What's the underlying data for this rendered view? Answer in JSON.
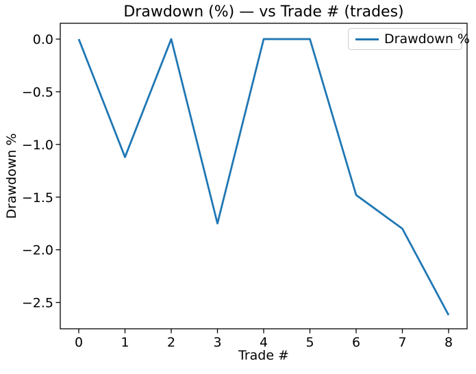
{
  "chart_data": {
    "type": "line",
    "title": "Drawdown (%) — vs Trade # (trades)",
    "xlabel": "Trade #",
    "ylabel": "Drawdown %",
    "x": [
      0,
      1,
      2,
      3,
      4,
      5,
      6,
      7,
      8
    ],
    "series": [
      {
        "name": "Drawdown %",
        "color": "#1f77b4",
        "values": [
          0.0,
          -1.12,
          0.0,
          -1.75,
          0.0,
          0.0,
          -1.48,
          -1.8,
          -2.62
        ]
      }
    ],
    "xlim": [
      -0.4,
      8.4
    ],
    "ylim": [
      -2.75,
      0.15
    ],
    "x_ticks": [
      0,
      1,
      2,
      3,
      4,
      5,
      6,
      7,
      8
    ],
    "y_ticks": [
      0.0,
      -0.5,
      -1.0,
      -1.5,
      -2.0,
      -2.5
    ],
    "y_tick_decimals": 1,
    "grid": false,
    "legend": {
      "position": "upper right",
      "entries": [
        "Drawdown %"
      ]
    }
  },
  "colors": {
    "line": "#1f77b4",
    "axis": "#000000",
    "legend_border": "#cccccc",
    "background": "#ffffff"
  }
}
